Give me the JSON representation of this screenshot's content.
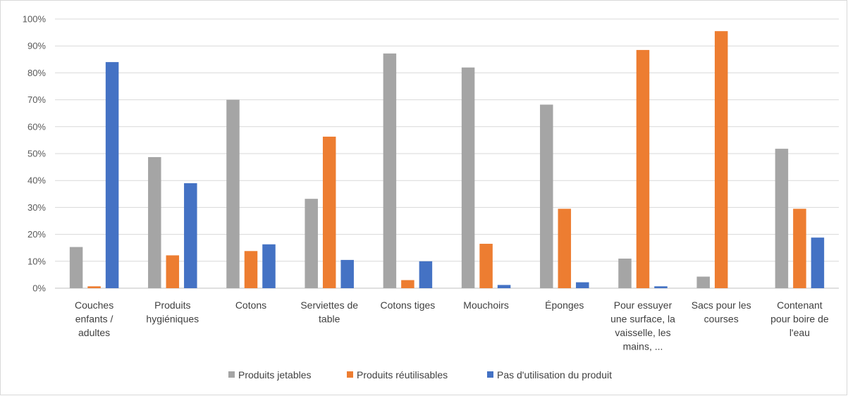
{
  "chart_data": {
    "type": "bar",
    "categories": [
      [
        "Couches",
        "enfants /",
        "adultes"
      ],
      [
        "Produits",
        "hygiéniques"
      ],
      [
        "Cotons"
      ],
      [
        "Serviettes de",
        "table"
      ],
      [
        "Cotons tiges"
      ],
      [
        "Mouchoirs"
      ],
      [
        "Éponges"
      ],
      [
        "Pour essuyer",
        "une surface, la",
        "vaisselle, les",
        "mains, ..."
      ],
      [
        "Sacs pour les",
        "courses"
      ],
      [
        "Contenant",
        "pour boire de",
        "l'eau"
      ]
    ],
    "series": [
      {
        "name": "Produits jetables",
        "color": "#a5a5a5",
        "values": [
          15.3,
          48.7,
          70.0,
          33.2,
          87.2,
          82.0,
          68.2,
          11.0,
          4.3,
          51.8
        ]
      },
      {
        "name": "Produits réutilisables",
        "color": "#ed7d31",
        "values": [
          0.7,
          12.2,
          13.8,
          56.3,
          3.0,
          16.5,
          29.5,
          88.5,
          95.5,
          29.5
        ]
      },
      {
        "name": "Pas d'utilisation du produit",
        "color": "#4472c4",
        "values": [
          84.0,
          39.0,
          16.3,
          10.5,
          10.0,
          1.2,
          2.2,
          0.7,
          0.0,
          18.8
        ]
      }
    ],
    "ylim": [
      0,
      100
    ],
    "yticks": [
      "0%",
      "10%",
      "20%",
      "30%",
      "40%",
      "50%",
      "60%",
      "70%",
      "80%",
      "90%",
      "100%"
    ],
    "grid": true,
    "legend_position": "bottom",
    "title": "",
    "xlabel": "",
    "ylabel": ""
  }
}
